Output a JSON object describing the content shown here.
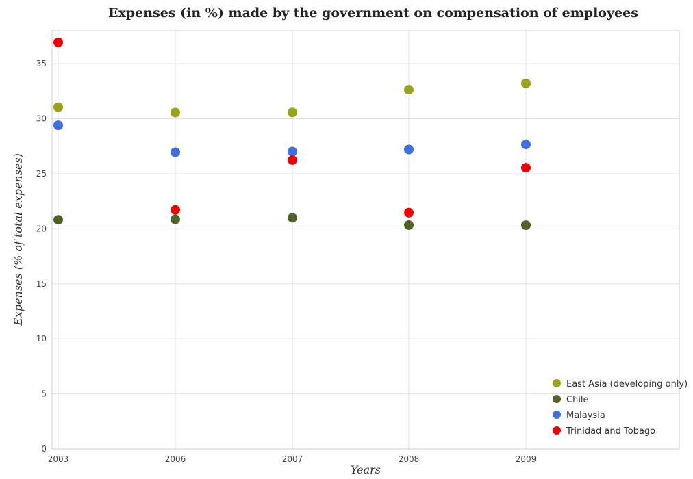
{
  "chart_data": {
    "type": "scatter",
    "title": "Expenses (in %) made by the government on compensation of employees",
    "xlabel": "Years",
    "ylabel": "Expenses (% of total expenses)",
    "categories": [
      "2003",
      "2006",
      "2007",
      "2008",
      "2009"
    ],
    "ylim": [
      0,
      38
    ],
    "yticks": [
      0,
      5,
      10,
      15,
      20,
      25,
      30,
      35
    ],
    "grid": true,
    "legend_position": "bottom-right",
    "series": [
      {
        "name": "East Asia (developing only)",
        "color": "#9aa11a",
        "values": [
          31.05,
          30.57,
          30.58,
          32.64,
          33.22
        ]
      },
      {
        "name": "Chile",
        "color": "#4f6228",
        "values": [
          20.82,
          20.86,
          21.0,
          20.34,
          20.33
        ]
      },
      {
        "name": "Malaysia",
        "color": "#3f6fe0",
        "values": [
          29.41,
          26.96,
          27.02,
          27.21,
          27.67
        ]
      },
      {
        "name": "Trinidad and Tobago",
        "color": "#ee0000",
        "values": [
          36.95,
          21.72,
          26.25,
          21.47,
          25.55
        ]
      }
    ]
  }
}
